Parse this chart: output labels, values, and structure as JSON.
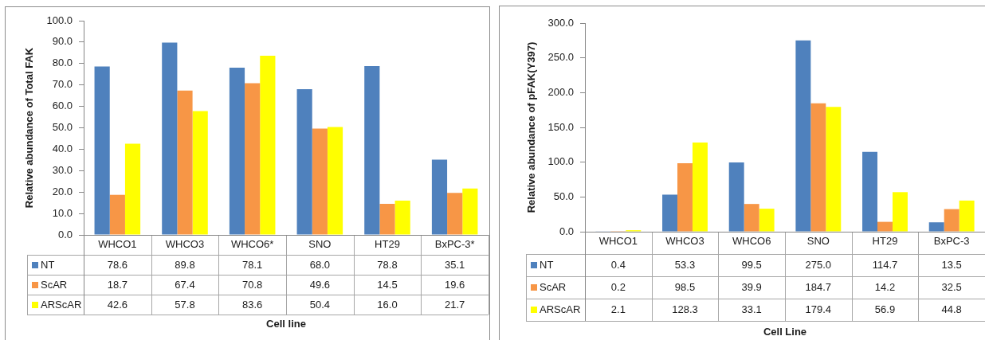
{
  "chart_data": [
    {
      "type": "bar",
      "xlabel": "Cell line",
      "ylabel": "Relative abundance of Total FAK",
      "categories": [
        "WHCO1",
        "WHCO3",
        "WHCO6*",
        "SNO",
        "HT29",
        "BxPC-3*"
      ],
      "series": [
        {
          "name": "NT",
          "color": "#4f81bd",
          "values": [
            78.6,
            89.8,
            78.1,
            68.0,
            78.8,
            35.1
          ],
          "value_labels": [
            "78.6",
            "89.8",
            "78.1",
            "68.0",
            "78.8",
            "35.1"
          ]
        },
        {
          "name": "ScAR",
          "color": "#f79646",
          "values": [
            18.7,
            67.4,
            70.8,
            49.6,
            14.5,
            19.6
          ],
          "value_labels": [
            "18.7",
            "67.4",
            "70.8",
            "49.6",
            "14.5",
            "19.6"
          ]
        },
        {
          "name": "ARScAR",
          "color": "#ffff00",
          "values": [
            42.6,
            57.8,
            83.6,
            50.4,
            16.0,
            21.7
          ],
          "value_labels": [
            "42.6",
            "57.8",
            "83.6",
            "50.4",
            "16.0",
            "21.7"
          ]
        }
      ],
      "ylim": [
        0,
        100
      ],
      "yticks": [
        {
          "value": 0,
          "label": "0.0"
        },
        {
          "value": 10,
          "label": "10.0"
        },
        {
          "value": 20,
          "label": "20.0"
        },
        {
          "value": 30,
          "label": "30.0"
        },
        {
          "value": 40,
          "label": "40.0"
        },
        {
          "value": 50,
          "label": "50.0"
        },
        {
          "value": 60,
          "label": "60.0"
        },
        {
          "value": 70,
          "label": "70.0"
        },
        {
          "value": 80,
          "label": "80.0"
        },
        {
          "value": 90,
          "label": "90.0"
        },
        {
          "value": 100,
          "label": "100.0"
        }
      ],
      "grid": false,
      "legend": "bottom left"
    },
    {
      "type": "bar",
      "xlabel": "Cell Line",
      "ylabel": "Relative abundance of pFAK(Y397)",
      "categories": [
        "WHCO1",
        "WHCO3",
        "WHCO6",
        "SNO",
        "HT29",
        "BxPC-3"
      ],
      "series": [
        {
          "name": "NT",
          "color": "#4f81bd",
          "values": [
            0.4,
            53.3,
            99.5,
            275.0,
            114.7,
            13.5
          ],
          "value_labels": [
            "0.4",
            "53.3",
            "99.5",
            "275.0",
            "114.7",
            "13.5"
          ]
        },
        {
          "name": "ScAR",
          "color": "#f79646",
          "values": [
            0.2,
            98.5,
            39.9,
            184.7,
            14.2,
            32.5
          ],
          "value_labels": [
            "0.2",
            "98.5",
            "39.9",
            "184.7",
            "14.2",
            "32.5"
          ]
        },
        {
          "name": "ARScAR",
          "color": "#ffff00",
          "values": [
            2.1,
            128.3,
            33.1,
            179.4,
            56.9,
            44.8
          ],
          "value_labels": [
            "2.1",
            "128.3",
            "33.1",
            "179.4",
            "56.9",
            "44.8"
          ]
        }
      ],
      "ylim": [
        0,
        300
      ],
      "yticks": [
        {
          "value": 0,
          "label": "0.0"
        },
        {
          "value": 50,
          "label": "50.0"
        },
        {
          "value": 100,
          "label": "100.0"
        },
        {
          "value": 150,
          "label": "150.0"
        },
        {
          "value": 200,
          "label": "200.0"
        },
        {
          "value": 250,
          "label": "250.0"
        },
        {
          "value": 300,
          "label": "300.0"
        }
      ],
      "grid": false,
      "legend": "bottom left"
    }
  ]
}
